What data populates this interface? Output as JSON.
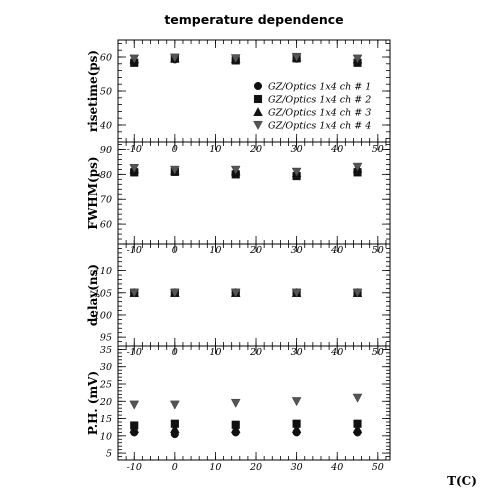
{
  "chart_data": {
    "type": "scatter",
    "title": "temperature dependence",
    "xlabel": "T(C)",
    "x_ticks": [
      -10,
      0,
      10,
      20,
      30,
      40,
      50
    ],
    "xlim": [
      -14,
      53
    ],
    "series_names": [
      "GZ/Optics 1x4 ch # 1",
      "GZ/Optics 1x4 ch # 2",
      "GZ/Optics 1x4 ch # 3",
      "GZ/Optics 1x4 ch # 4"
    ],
    "series_markers": [
      "circle",
      "square",
      "triangle-up",
      "triangle-down"
    ],
    "x": [
      -10,
      0,
      15,
      30,
      45
    ],
    "panels": [
      {
        "ylabel": "risetime(ps)",
        "ylim": [
          35,
          65
        ],
        "y_ticks": [
          40,
          50,
          60
        ],
        "values": [
          [
            58.5,
            59.3,
            59.0,
            59.5,
            58.5
          ],
          [
            58.3,
            59.5,
            59.0,
            59.6,
            58.3
          ],
          [
            59.3,
            59.6,
            59.4,
            59.9,
            59.3
          ],
          [
            59.5,
            59.8,
            59.6,
            60.0,
            59.5
          ]
        ]
      },
      {
        "ylabel": "FWHM(ps)",
        "ylim": [
          52,
          93
        ],
        "y_ticks": [
          60,
          70,
          80,
          90
        ],
        "values": [
          [
            81.5,
            81.2,
            80.5,
            79.8,
            81.5
          ],
          [
            80.8,
            81.0,
            80.0,
            79.3,
            80.8
          ],
          [
            82.0,
            81.5,
            81.2,
            80.5,
            82.3
          ],
          [
            82.5,
            81.8,
            81.8,
            81.0,
            83.0
          ]
        ]
      },
      {
        "ylabel": "delay(ns)",
        "ylim": [
          93,
          116
        ],
        "y_ticks": [
          95,
          100,
          105,
          110
        ],
        "values": [
          [
            105,
            105,
            105,
            105,
            105
          ],
          [
            105,
            105,
            105,
            105,
            105
          ],
          [
            105,
            105,
            105,
            105,
            105
          ],
          [
            105,
            105,
            105,
            105,
            105
          ]
        ]
      },
      {
        "ylabel": "P.H. (mV)",
        "ylim": [
          3,
          36
        ],
        "y_ticks": [
          5,
          10,
          15,
          20,
          25,
          30,
          35
        ],
        "values": [
          [
            11.0,
            10.5,
            11.0,
            11.0,
            11.0
          ],
          [
            13.0,
            13.5,
            13.2,
            13.5,
            13.5
          ],
          [
            12.0,
            12.0,
            12.0,
            12.0,
            12.0
          ],
          [
            19.0,
            19.0,
            19.5,
            20.0,
            21.0
          ]
        ]
      }
    ]
  }
}
